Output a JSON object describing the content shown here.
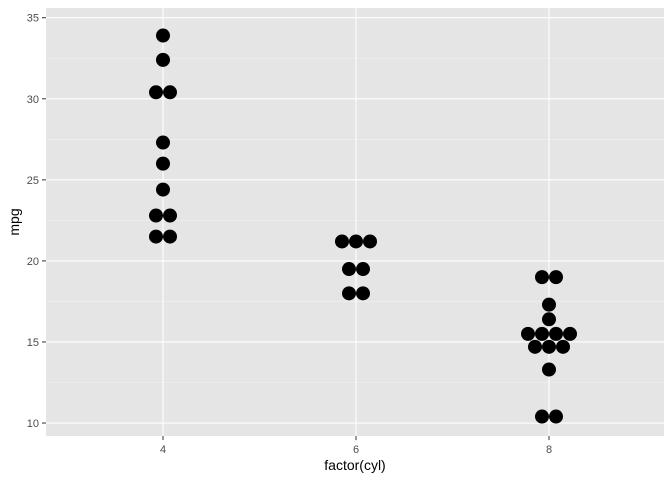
{
  "chart_data": {
    "type": "scatter",
    "subtype": "dotplot",
    "xlabel": "factor(cyl)",
    "ylabel": "mpg",
    "x_categories": [
      "4",
      "6",
      "8"
    ],
    "ylim": [
      9.2,
      35.6
    ],
    "y_ticks": [
      10,
      15,
      20,
      25,
      30,
      35
    ],
    "y_tick_labels": [
      "10",
      "15",
      "20",
      "25",
      "30",
      "35"
    ],
    "grid": true,
    "legend": "none",
    "colors": {
      "panel_background": "#e5e5e5",
      "grid_major": "#ffffff",
      "grid_minor": "#f2f2f2",
      "point": "#000000",
      "tick": "#333333"
    },
    "groups": [
      {
        "category": "4",
        "stacks": [
          {
            "mpg": 21.5,
            "count": 2
          },
          {
            "mpg": 22.8,
            "count": 2
          },
          {
            "mpg": 24.4,
            "count": 1
          },
          {
            "mpg": 26.0,
            "count": 1
          },
          {
            "mpg": 27.3,
            "count": 1
          },
          {
            "mpg": 30.4,
            "count": 2
          },
          {
            "mpg": 32.4,
            "count": 1
          },
          {
            "mpg": 33.9,
            "count": 1
          }
        ]
      },
      {
        "category": "6",
        "stacks": [
          {
            "mpg": 18.0,
            "count": 2
          },
          {
            "mpg": 19.5,
            "count": 2
          },
          {
            "mpg": 21.2,
            "count": 3
          }
        ]
      },
      {
        "category": "8",
        "stacks": [
          {
            "mpg": 10.4,
            "count": 2
          },
          {
            "mpg": 13.3,
            "count": 1
          },
          {
            "mpg": 14.7,
            "count": 3
          },
          {
            "mpg": 15.5,
            "count": 4
          },
          {
            "mpg": 16.4,
            "count": 1
          },
          {
            "mpg": 17.3,
            "count": 1
          },
          {
            "mpg": 19.0,
            "count": 2
          }
        ]
      }
    ]
  }
}
